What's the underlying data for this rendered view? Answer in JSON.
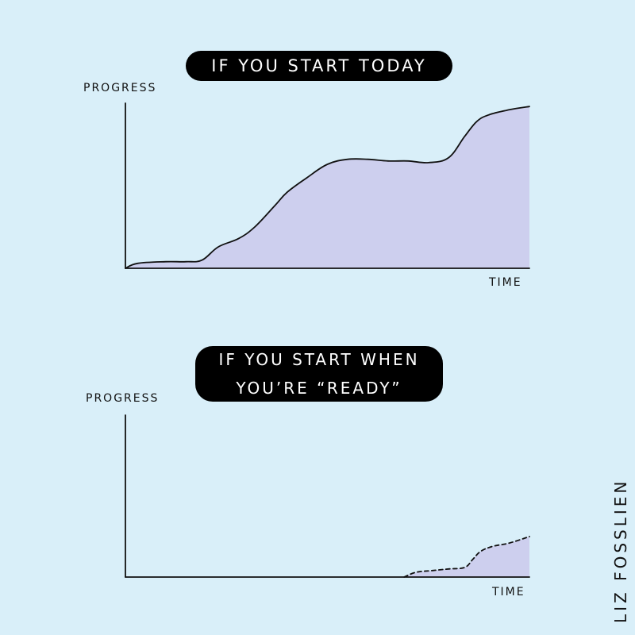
{
  "chart_data": [
    {
      "type": "area",
      "title": "IF YOU START TODAY",
      "xlabel": "TIME",
      "ylabel": "PROGRESS",
      "x": [
        0,
        3,
        10,
        15,
        19,
        23,
        28,
        32,
        37,
        40,
        45,
        50,
        55,
        60,
        65,
        70,
        75,
        80,
        84,
        87,
        90,
        95,
        100
      ],
      "y": [
        0,
        3,
        4,
        4,
        5,
        13,
        18,
        25,
        38,
        46,
        55,
        63,
        66,
        66,
        65,
        65,
        64,
        67,
        80,
        89,
        93,
        96,
        98
      ],
      "xlim": [
        0,
        100
      ],
      "ylim": [
        0,
        100
      ],
      "fill": "#cdcfee",
      "grid": false
    },
    {
      "type": "area",
      "title": "IF YOU START WHEN YOU'RE “READY”",
      "xlabel": "TIME",
      "ylabel": "PROGRESS",
      "x": [
        69,
        72,
        76,
        80,
        84,
        86,
        88,
        91,
        95,
        100
      ],
      "y": [
        0,
        3,
        4,
        5,
        6,
        11,
        16,
        19,
        21,
        25
      ],
      "xlim": [
        0,
        100
      ],
      "ylim": [
        0,
        100
      ],
      "fill": "#cdcfee",
      "line_style": "dashed",
      "grid": false
    }
  ],
  "titles": {
    "top": "IF YOU START TODAY",
    "bottom_line1": "IF YOU START WHEN",
    "bottom_line2": "YOU’RE “READY”"
  },
  "labels": {
    "progress_top": "PROGRESS",
    "time_top": "TIME",
    "progress_bottom": "PROGRESS",
    "time_bottom": "TIME"
  },
  "signature": "LIZ FOSSLIEN",
  "colors": {
    "background": "#d9eff9",
    "area_fill": "#cdcfee",
    "ink": "#111111"
  }
}
